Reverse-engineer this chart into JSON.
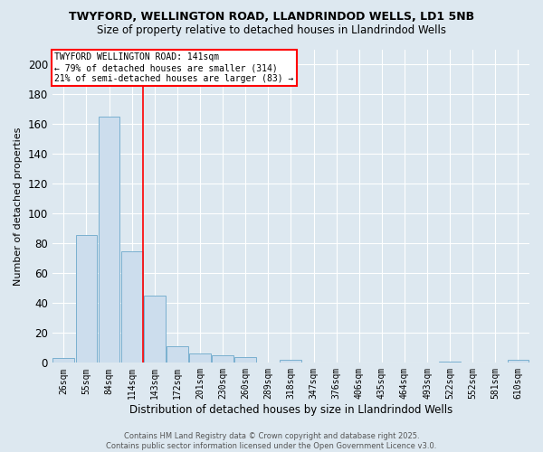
{
  "title1": "TWYFORD, WELLINGTON ROAD, LLANDRINDOD WELLS, LD1 5NB",
  "title2": "Size of property relative to detached houses in Llandrindod Wells",
  "xlabel": "Distribution of detached houses by size in Llandrindod Wells",
  "ylabel": "Number of detached properties",
  "bar_labels": [
    "26sqm",
    "55sqm",
    "84sqm",
    "114sqm",
    "143sqm",
    "172sqm",
    "201sqm",
    "230sqm",
    "260sqm",
    "289sqm",
    "318sqm",
    "347sqm",
    "376sqm",
    "406sqm",
    "435sqm",
    "464sqm",
    "493sqm",
    "522sqm",
    "552sqm",
    "581sqm",
    "610sqm"
  ],
  "bar_values": [
    3,
    86,
    165,
    75,
    45,
    11,
    6,
    5,
    4,
    0,
    2,
    0,
    0,
    0,
    0,
    0,
    0,
    1,
    0,
    0,
    2
  ],
  "bar_color": "#ccdded",
  "bar_edge_color": "#7ab0d0",
  "vline_color": "red",
  "vline_index": 3.5,
  "annotation_text": "TWYFORD WELLINGTON ROAD: 141sqm\n← 79% of detached houses are smaller (314)\n21% of semi-detached houses are larger (83) →",
  "annotation_box_color": "white",
  "annotation_box_edge": "red",
  "ylim": [
    0,
    210
  ],
  "yticks": [
    0,
    20,
    40,
    60,
    80,
    100,
    120,
    140,
    160,
    180,
    200
  ],
  "footnote": "Contains HM Land Registry data © Crown copyright and database right 2025.\nContains public sector information licensed under the Open Government Licence v3.0.",
  "bg_color": "#dde8f0",
  "fig_bg_color": "#dde8f0"
}
